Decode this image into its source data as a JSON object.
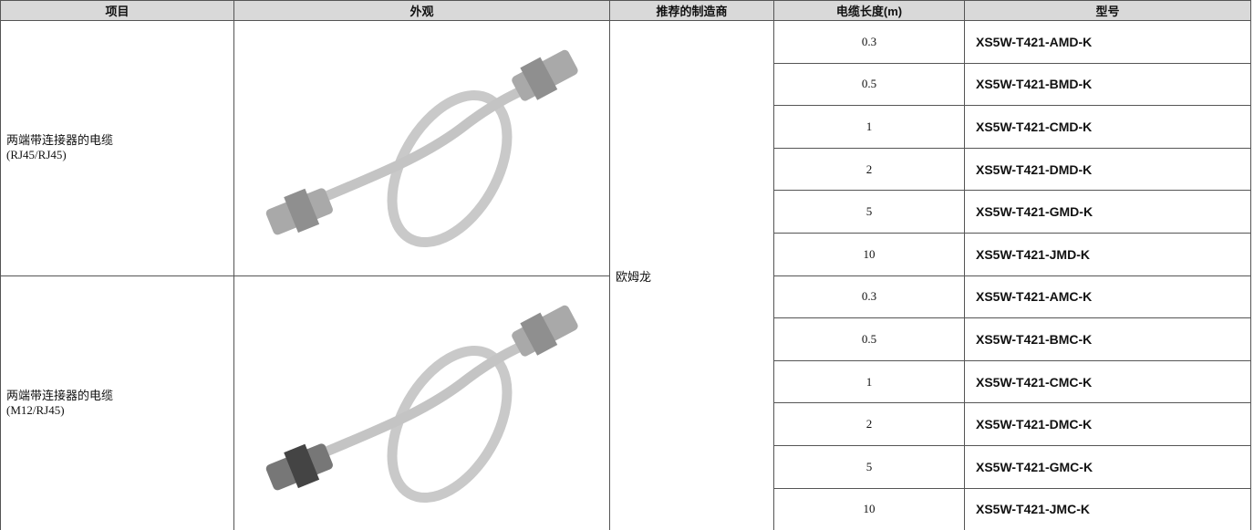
{
  "table": {
    "header": [
      "项目",
      "外观",
      "推荐的制造商",
      "电缆长度(m)",
      "型号"
    ],
    "manufacturer": "欧姆龙",
    "groups": [
      {
        "item": [
          "两端带连接器的电缆",
          "(RJ45/RJ45)"
        ],
        "rows": [
          [
            "0.3",
            "XS5W-T421-AMD-K"
          ],
          [
            "0.5",
            "XS5W-T421-BMD-K"
          ],
          [
            "1",
            "XS5W-T421-CMD-K"
          ],
          [
            "2",
            "XS5W-T421-DMD-K"
          ],
          [
            "5",
            "XS5W-T421-GMD-K"
          ],
          [
            "10",
            "XS5W-T421-JMD-K"
          ]
        ]
      },
      {
        "item": [
          "两端带连接器的电缆",
          "(M12/RJ45)"
        ],
        "rows": [
          [
            "0.3",
            "XS5W-T421-AMC-K"
          ],
          [
            "0.5",
            "XS5W-T421-BMC-K"
          ],
          [
            "1",
            "XS5W-T421-CMC-K"
          ],
          [
            "2",
            "XS5W-T421-DMC-K"
          ],
          [
            "5",
            "XS5W-T421-GMC-K"
          ],
          [
            "10",
            "XS5W-T421-JMC-K"
          ]
        ]
      }
    ]
  }
}
